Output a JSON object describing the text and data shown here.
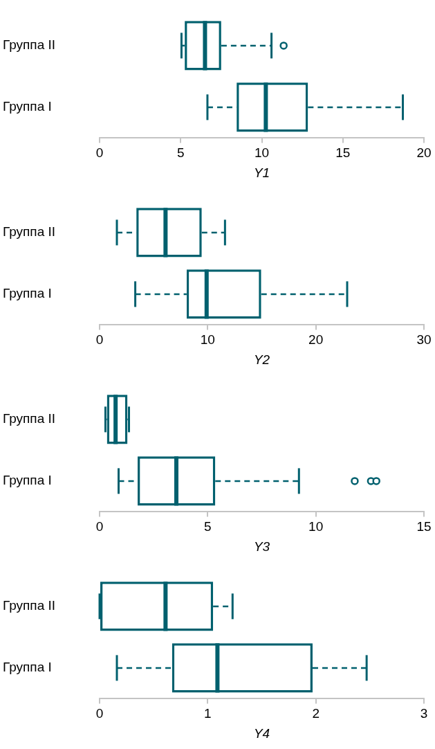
{
  "chart_data": [
    {
      "type": "box",
      "orientation": "horizontal",
      "categories": [
        "Группа II",
        "Группа I"
      ],
      "xlabel": "Y1",
      "xlim": [
        0,
        20
      ],
      "xticks": [
        0,
        5,
        10,
        15,
        20
      ],
      "color": "#00606e",
      "grid": false,
      "legend": false,
      "boxes": [
        {
          "low": 5.05,
          "q1": 5.25,
          "median": 6.5,
          "q3": 7.5,
          "high": 10.6,
          "outliers": [
            11.35
          ]
        },
        {
          "low": 6.65,
          "q1": 8.45,
          "median": 10.25,
          "q3": 12.85,
          "high": 18.7
        }
      ]
    },
    {
      "type": "box",
      "orientation": "horizontal",
      "categories": [
        "Группа II",
        "Группа I"
      ],
      "xlabel": "Y2",
      "xlim": [
        0,
        30
      ],
      "xticks": [
        0,
        10,
        20,
        30
      ],
      "color": "#00606e",
      "grid": false,
      "legend": false,
      "boxes": [
        {
          "low": 1.6,
          "q1": 3.4,
          "median": 6.1,
          "q3": 9.45,
          "high": 11.6
        },
        {
          "low": 3.3,
          "q1": 8.05,
          "median": 9.9,
          "q3": 14.95,
          "high": 22.9
        }
      ]
    },
    {
      "type": "box",
      "orientation": "horizontal",
      "categories": [
        "Группа II",
        "Группа I"
      ],
      "xlabel": "Y3",
      "xlim": [
        0,
        15
      ],
      "xticks": [
        0,
        5,
        10,
        15
      ],
      "color": "#00606e",
      "grid": false,
      "legend": false,
      "boxes": [
        {
          "low": 0.27,
          "q1": 0.34,
          "median": 0.74,
          "q3": 1.29,
          "high": 1.36
        },
        {
          "low": 0.88,
          "q1": 1.76,
          "median": 3.55,
          "q3": 5.35,
          "high": 9.22,
          "outliers": [
            11.8,
            12.55,
            12.8
          ]
        }
      ]
    },
    {
      "type": "box",
      "orientation": "horizontal",
      "categories": [
        "Группа II",
        "Группа I"
      ],
      "xlabel": "Y4",
      "xlim": [
        0,
        3
      ],
      "xticks": [
        0,
        1,
        2,
        3
      ],
      "color": "#00606e",
      "grid": false,
      "legend": false,
      "boxes": [
        {
          "low": 0,
          "q1": 0,
          "median": 0.61,
          "q3": 1.05,
          "high": 1.23
        },
        {
          "low": 0.16,
          "q1": 0.67,
          "median": 1.09,
          "q3": 1.97,
          "high": 2.47
        }
      ]
    }
  ]
}
